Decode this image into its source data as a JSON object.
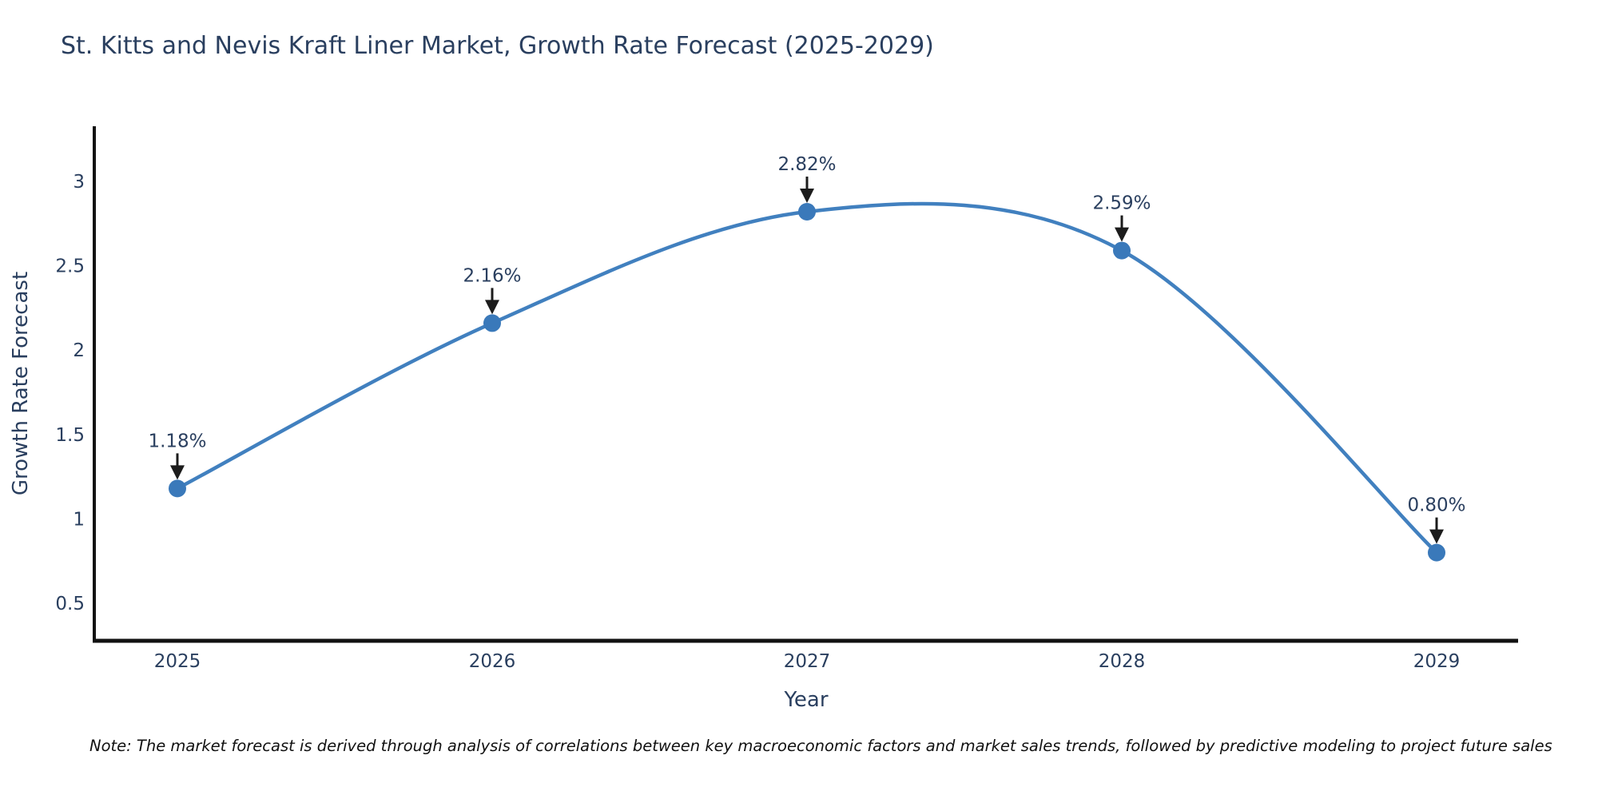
{
  "title": "St. Kitts and Nevis Kraft Liner Market, Growth Rate Forecast (2025-2029)",
  "note": "Note: The market forecast is derived through analysis of correlations between key macroeconomic factors and market sales trends, followed by predictive modeling to project future sales",
  "chart_data": {
    "type": "line",
    "line_shape": "spline",
    "x": [
      2025,
      2026,
      2027,
      2028,
      2029
    ],
    "values": [
      1.18,
      2.16,
      2.82,
      2.59,
      0.8
    ],
    "point_labels": [
      "1.18%",
      "2.16%",
      "2.82%",
      "2.59%",
      "0.80%"
    ],
    "xlabel": "Year",
    "ylabel": "Growth Rate Forecast",
    "xticks": [
      "2025",
      "2026",
      "2027",
      "2028",
      "2029"
    ],
    "yticks": [
      0.5,
      1,
      1.5,
      2,
      2.5,
      3
    ],
    "ylim": [
      0.28,
      3.32
    ],
    "grid": false,
    "legend": "none",
    "colors": {
      "line": "#4180bf",
      "marker": "#3a79ba",
      "axis": "#111111",
      "text": "#2a3f5f",
      "arrow": "#1c1c1c",
      "background": "#ffffff"
    }
  }
}
